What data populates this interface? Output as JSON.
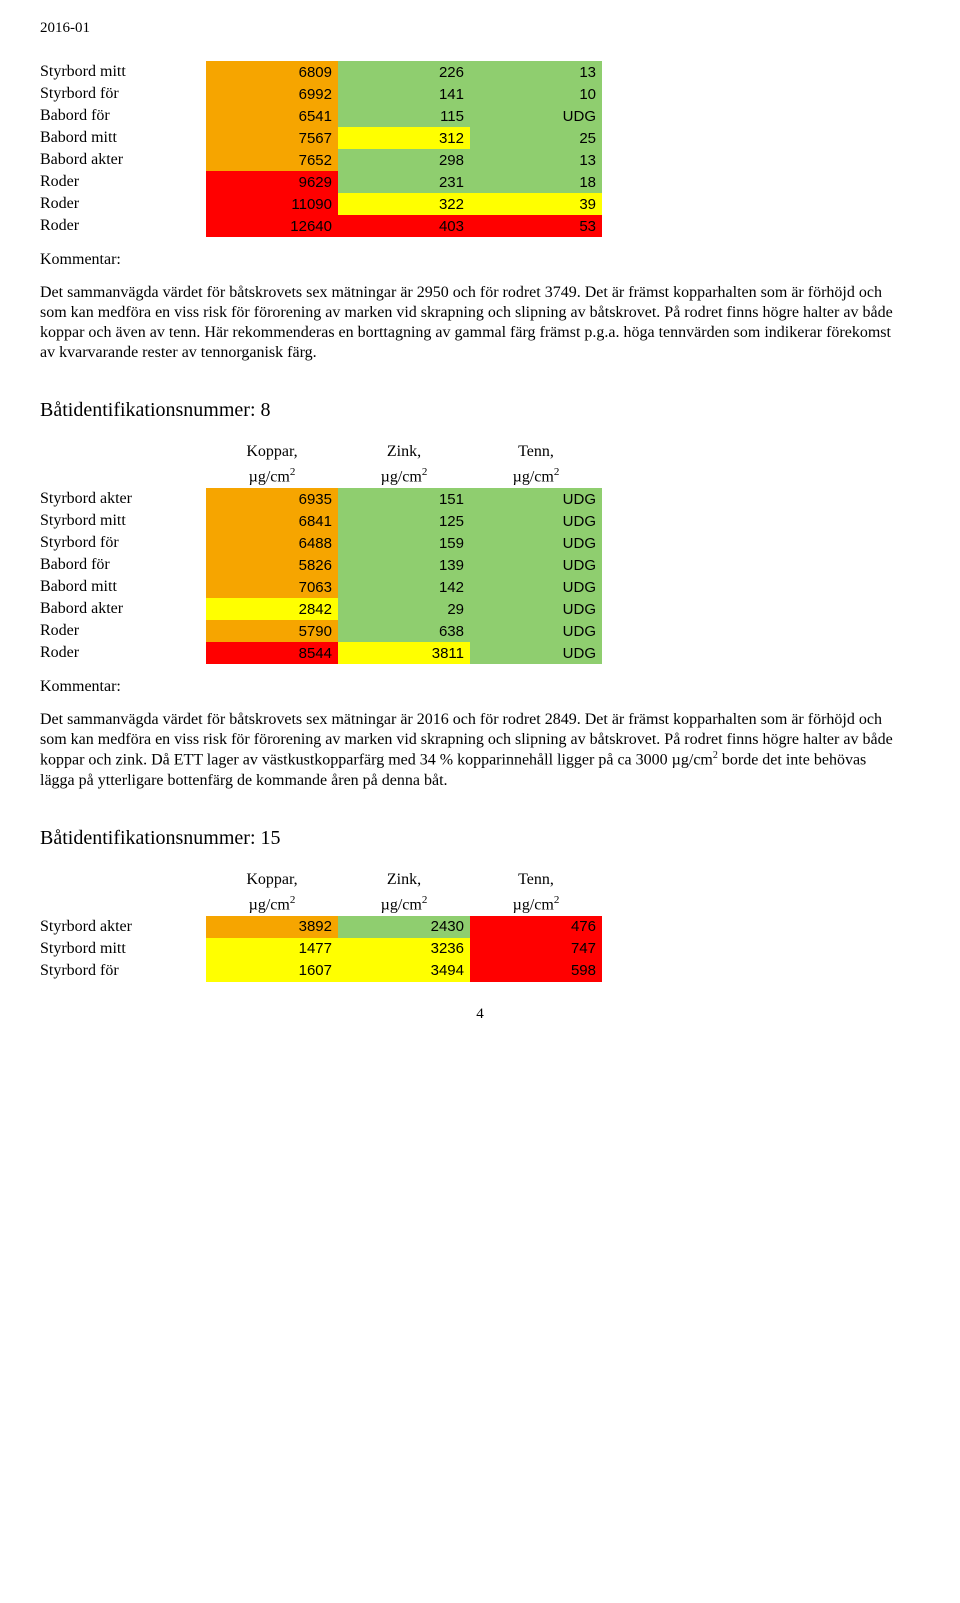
{
  "date": "2016-01",
  "colors": {
    "orange": "#f6a500",
    "green": "#8fce6f",
    "yellow": "#ffff00",
    "red": "#ff0000",
    "white": "#ffffff"
  },
  "headers": {
    "koppar": "Koppar,",
    "zink": "Zink,",
    "tenn": "Tenn,",
    "unit_html": "µg/cm"
  },
  "kommentar_label": "Kommentar:",
  "table1": {
    "rows": [
      {
        "label": "Styrbord mitt",
        "v": [
          6809,
          226,
          13
        ],
        "c": [
          "orange",
          "green",
          "green"
        ]
      },
      {
        "label": "Styrbord för",
        "v": [
          6992,
          141,
          10
        ],
        "c": [
          "orange",
          "green",
          "green"
        ]
      },
      {
        "label": "Babord för",
        "v": [
          6541,
          115,
          "UDG"
        ],
        "c": [
          "orange",
          "green",
          "green"
        ]
      },
      {
        "label": "Babord mitt",
        "v": [
          7567,
          312,
          25
        ],
        "c": [
          "orange",
          "yellow",
          "green"
        ]
      },
      {
        "label": "Babord akter",
        "v": [
          7652,
          298,
          13
        ],
        "c": [
          "orange",
          "green",
          "green"
        ]
      },
      {
        "label": "Roder",
        "v": [
          9629,
          231,
          18
        ],
        "c": [
          "red",
          "green",
          "green"
        ]
      },
      {
        "label": "Roder",
        "v": [
          11090,
          322,
          39
        ],
        "c": [
          "red",
          "yellow",
          "yellow"
        ]
      },
      {
        "label": "Roder",
        "v": [
          12640,
          403,
          53
        ],
        "c": [
          "red",
          "red",
          "red"
        ]
      }
    ]
  },
  "para1": "Det sammanvägda värdet för båtskrovets sex mätningar är 2950 och för rodret 3749. Det är främst kopparhalten som är förhöjd och som kan medföra en viss risk för förorening av marken vid skrapning och slipning av båtskrovet. På rodret finns högre halter av både koppar och även av tenn. Här rekommenderas en borttagning av gammal färg främst p.g.a. höga tennvärden som indikerar förekomst av kvarvarande rester av tennorganisk färg.",
  "boat8_title": "Båtidentifikationsnummer: 8",
  "table2": {
    "rows": [
      {
        "label": "Styrbord akter",
        "v": [
          6935,
          151,
          "UDG"
        ],
        "c": [
          "orange",
          "green",
          "green"
        ]
      },
      {
        "label": "Styrbord mitt",
        "v": [
          6841,
          125,
          "UDG"
        ],
        "c": [
          "orange",
          "green",
          "green"
        ]
      },
      {
        "label": "Styrbord för",
        "v": [
          6488,
          159,
          "UDG"
        ],
        "c": [
          "orange",
          "green",
          "green"
        ]
      },
      {
        "label": "Babord för",
        "v": [
          5826,
          139,
          "UDG"
        ],
        "c": [
          "orange",
          "green",
          "green"
        ]
      },
      {
        "label": "Babord mitt",
        "v": [
          7063,
          142,
          "UDG"
        ],
        "c": [
          "orange",
          "green",
          "green"
        ]
      },
      {
        "label": "Babord akter",
        "v": [
          2842,
          29,
          "UDG"
        ],
        "c": [
          "yellow",
          "green",
          "green"
        ]
      },
      {
        "label": "Roder",
        "v": [
          5790,
          638,
          "UDG"
        ],
        "c": [
          "orange",
          "green",
          "green"
        ]
      },
      {
        "label": "Roder",
        "v": [
          8544,
          3811,
          "UDG"
        ],
        "c": [
          "red",
          "yellow",
          "green"
        ]
      }
    ]
  },
  "para2": "Det sammanvägda värdet för båtskrovets sex mätningar är 2016 och för rodret 2849. Det är främst kopparhalten som är förhöjd och som kan medföra en viss risk för förorening av marken vid skrapning och slipning av båtskrovet. På rodret finns högre halter av både koppar och zink. Då ETT lager av västkustkopparfärg med 34 % kopparinnehåll ligger på ca 3000 µg/cm2 borde det inte behövas lägga på ytterligare bottenfärg de kommande åren på denna båt.",
  "boat15_title": "Båtidentifikationsnummer: 15",
  "table3": {
    "rows": [
      {
        "label": "Styrbord akter",
        "v": [
          3892,
          2430,
          476
        ],
        "c": [
          "orange",
          "green",
          "red"
        ]
      },
      {
        "label": "Styrbord mitt",
        "v": [
          1477,
          3236,
          747
        ],
        "c": [
          "yellow",
          "yellow",
          "red"
        ]
      },
      {
        "label": "Styrbord för",
        "v": [
          1607,
          3494,
          598
        ],
        "c": [
          "yellow",
          "yellow",
          "red"
        ]
      }
    ]
  },
  "pagenum": "4"
}
